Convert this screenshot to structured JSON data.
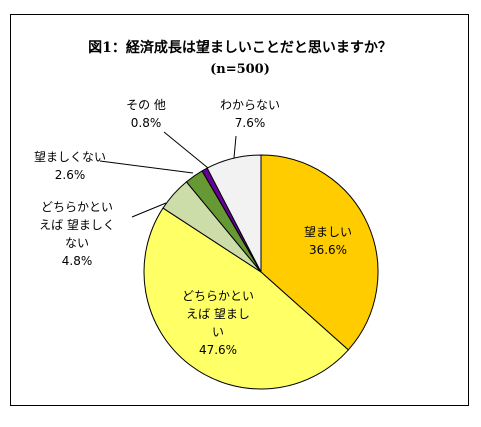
{
  "chart_data": {
    "type": "pie",
    "title": "図1：経済成長は望ましいことだと思いますか？",
    "subtitle": "(n=500)",
    "slices": [
      {
        "label_lines": [
          "望ましい"
        ],
        "value": 36.6,
        "value_text": "36.6%",
        "color": "#FFCC00"
      },
      {
        "label_lines": [
          "どちらかとい",
          "えば 望まし",
          "い"
        ],
        "value": 47.6,
        "value_text": "47.6%",
        "color": "#FFFF66"
      },
      {
        "label_lines": [
          "どちらかとい",
          "えば 望ましく",
          "ない"
        ],
        "value": 4.8,
        "value_text": "4.8%",
        "color": "#CCDDAA"
      },
      {
        "label_lines": [
          "望ましくない"
        ],
        "value": 2.6,
        "value_text": "2.6%",
        "color": "#669933"
      },
      {
        "label_lines": [
          "その 他"
        ],
        "value": 0.8,
        "value_text": "0.8%",
        "color": "#660099"
      },
      {
        "label_lines": [
          "わからない"
        ],
        "value": 7.6,
        "value_text": "7.6%",
        "color": "#F2F2F2"
      }
    ]
  }
}
